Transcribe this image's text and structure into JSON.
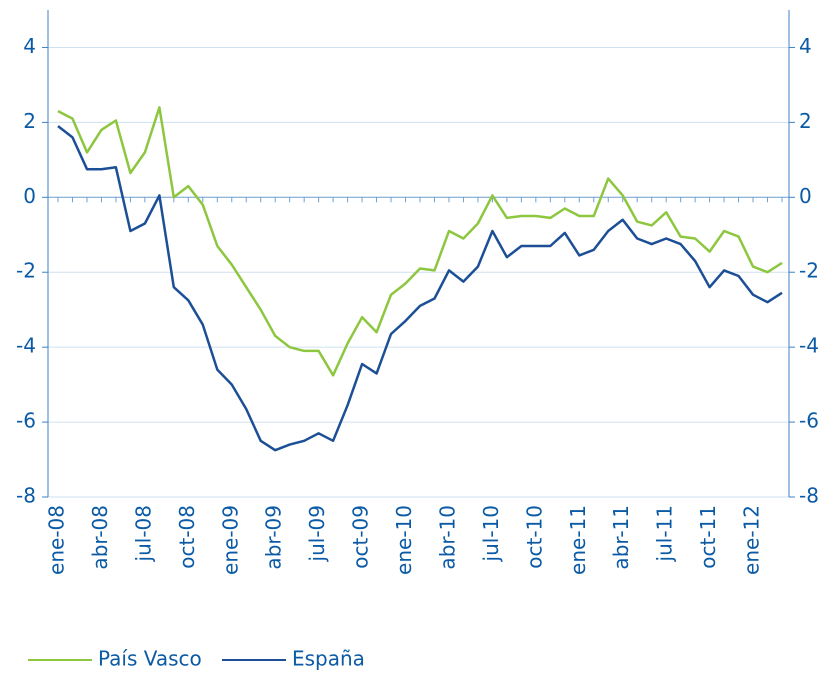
{
  "chart_data": {
    "type": "line",
    "categories": [
      "ene-08",
      null,
      null,
      "abr-08",
      null,
      null,
      "jul-08",
      null,
      null,
      "oct-08",
      null,
      null,
      "ene-09",
      null,
      null,
      "abr-09",
      null,
      null,
      "jul-09",
      null,
      null,
      "oct-09",
      null,
      null,
      "ene-10",
      null,
      null,
      "abr-10",
      null,
      null,
      "jul-10",
      null,
      null,
      "oct-10",
      null,
      null,
      "ene-11",
      null,
      null,
      "abr-11",
      null,
      null,
      "jul-11",
      null,
      null,
      "oct-11",
      null,
      null,
      "ene-12",
      null,
      null
    ],
    "series": [
      {
        "name": "País Vasco",
        "color": "#8dc63f",
        "values": [
          2.3,
          2.1,
          1.2,
          1.8,
          2.05,
          0.65,
          1.2,
          2.4,
          0.0,
          0.3,
          -0.2,
          -1.3,
          -1.8,
          -2.4,
          -3.0,
          -3.7,
          -4.0,
          -4.1,
          -4.1,
          -4.75,
          -3.9,
          -3.2,
          -3.6,
          -2.6,
          -2.3,
          -1.9,
          -1.95,
          -0.9,
          -1.1,
          -0.7,
          0.05,
          -0.55,
          -0.5,
          -0.5,
          -0.55,
          -0.3,
          -0.5,
          -0.5,
          0.5,
          0.05,
          -0.65,
          -0.75,
          -0.4,
          -1.05,
          -1.1,
          -1.45,
          -0.9,
          -1.05,
          -1.85,
          -2.0,
          -1.75
        ]
      },
      {
        "name": "España",
        "color": "#1c4f96",
        "values": [
          1.9,
          1.6,
          0.75,
          0.75,
          0.8,
          -0.9,
          -0.7,
          0.05,
          -2.4,
          -2.75,
          -3.4,
          -4.6,
          -5.0,
          -5.65,
          -6.5,
          -6.75,
          -6.6,
          -6.5,
          -6.3,
          -6.5,
          -5.55,
          -4.45,
          -4.7,
          -3.65,
          -3.3,
          -2.9,
          -2.7,
          -1.95,
          -2.25,
          -1.85,
          -0.9,
          -1.6,
          -1.3,
          -1.3,
          -1.3,
          -0.95,
          -1.55,
          -1.4,
          -0.9,
          -0.6,
          -1.1,
          -1.25,
          -1.1,
          -1.25,
          -1.7,
          -2.4,
          -1.95,
          -2.1,
          -2.6,
          -2.8,
          -2.55
        ]
      }
    ],
    "ylim": [
      -8,
      5
    ],
    "yticks": [
      -8,
      -6,
      -4,
      -2,
      0,
      2,
      4
    ],
    "grid": true
  }
}
